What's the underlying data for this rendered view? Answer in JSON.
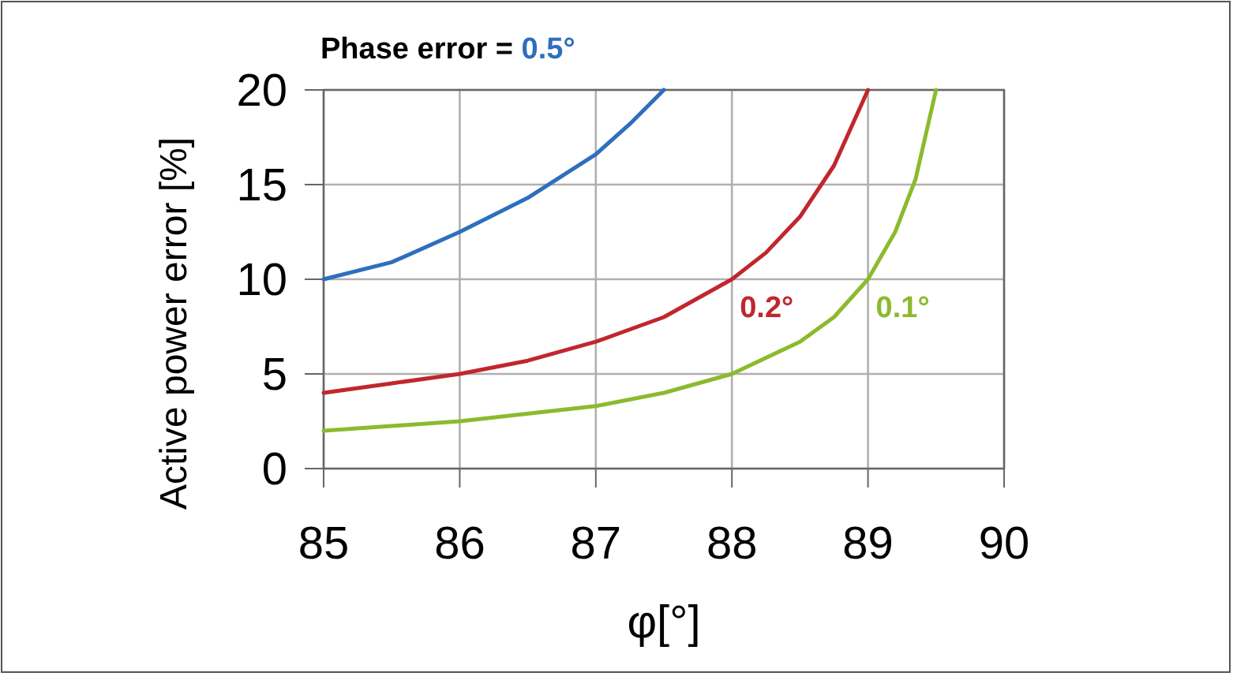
{
  "chart_data": {
    "type": "line",
    "title": "Phase error =",
    "xlabel": "φ[°]",
    "ylabel": "Active power error [%]",
    "xlim": [
      85,
      90
    ],
    "xticks": [
      85,
      86,
      87,
      88,
      89,
      90
    ],
    "ylim": [
      0,
      20
    ],
    "yticks": [
      0,
      5,
      10,
      15,
      20
    ],
    "grid": true,
    "line_style": "solid",
    "marker": "none",
    "series": [
      {
        "name": "0.5°",
        "color": "#2e6fbd",
        "x": [
          85,
          85.5,
          86,
          86.5,
          87,
          87.25,
          87.5
        ],
        "values": [
          10,
          10.9,
          12.5,
          14.3,
          16.6,
          18.2,
          20
        ]
      },
      {
        "name": "0.2°",
        "color": "#c0272d",
        "x": [
          85,
          85.5,
          86,
          86.5,
          87,
          87.5,
          88,
          88.25,
          88.5,
          88.75,
          89
        ],
        "values": [
          4,
          4.5,
          5,
          5.7,
          6.7,
          8,
          10,
          11.4,
          13.3,
          16,
          20
        ]
      },
      {
        "name": "0.1°",
        "color": "#8cba2e",
        "x": [
          85,
          86,
          87,
          87.5,
          88,
          88.5,
          88.75,
          89,
          89.2,
          89.35,
          89.5
        ],
        "values": [
          2,
          2.5,
          3.3,
          4,
          5,
          6.7,
          8,
          10,
          12.5,
          15.3,
          20
        ]
      }
    ]
  }
}
